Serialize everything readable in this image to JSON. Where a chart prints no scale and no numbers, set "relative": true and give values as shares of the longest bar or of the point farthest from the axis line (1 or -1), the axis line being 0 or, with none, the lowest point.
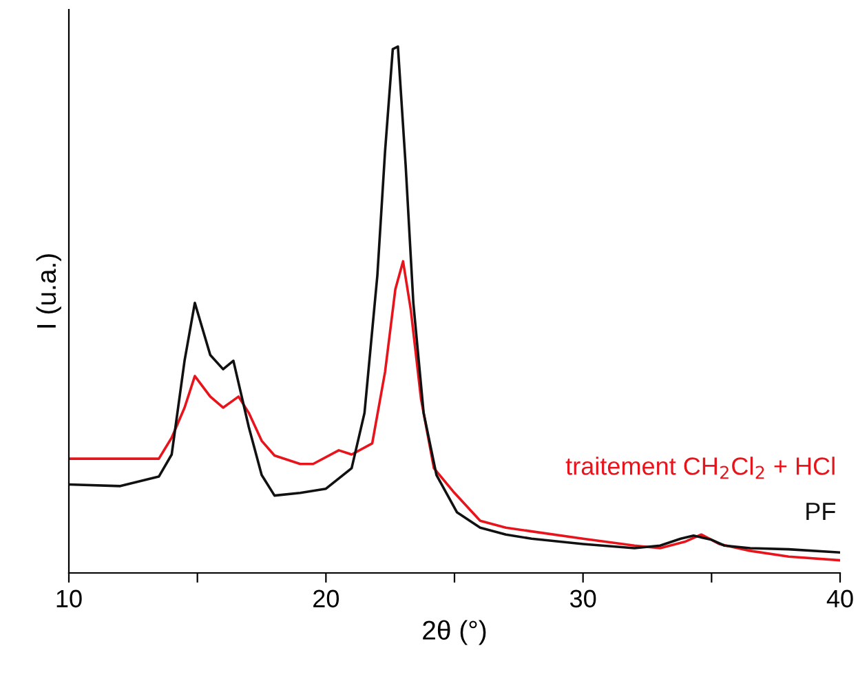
{
  "chart_data": {
    "type": "line",
    "relative": true,
    "xlabel": "2θ (°)",
    "ylabel": "I (u.a.)",
    "xlim": [
      10,
      40
    ],
    "xticks": [
      10,
      {
        "value": 15,
        "label": null
      },
      20,
      {
        "value": 25,
        "label": null
      },
      30,
      {
        "value": 35,
        "label": null
      },
      40
    ],
    "grid": false,
    "legend": false,
    "marker": "none",
    "line_style": "solid",
    "series": [
      {
        "name": "traitement CH$_{2}$Cl$_{2}$ + HCl",
        "color": "#e8141c",
        "x": [
          10,
          12,
          13.5,
          14.0,
          14.5,
          14.9,
          15.5,
          16.0,
          16.6,
          17.0,
          17.5,
          18.0,
          19.0,
          19.5,
          20.5,
          21.0,
          21.8,
          22.3,
          22.7,
          23.0,
          23.3,
          23.7,
          24.2,
          25,
          26,
          27,
          28,
          30,
          32,
          33,
          34,
          34.6,
          35.3,
          36.5,
          38,
          40
        ],
        "values": [
          0.217,
          0.217,
          0.217,
          0.257,
          0.314,
          0.374,
          0.335,
          0.314,
          0.335,
          0.304,
          0.251,
          0.223,
          0.207,
          0.207,
          0.233,
          0.225,
          0.246,
          0.382,
          0.539,
          0.592,
          0.5,
          0.33,
          0.199,
          0.152,
          0.099,
          0.086,
          0.079,
          0.065,
          0.052,
          0.047,
          0.06,
          0.073,
          0.055,
          0.042,
          0.031,
          0.024
        ]
      },
      {
        "name": "PF",
        "color": "#111111",
        "x": [
          10,
          12,
          13.5,
          14.0,
          14.5,
          14.9,
          15.5,
          16.0,
          16.4,
          17.0,
          17.5,
          18.0,
          19.0,
          20.0,
          21.0,
          21.5,
          22.0,
          22.3,
          22.6,
          22.8,
          23.1,
          23.4,
          23.8,
          24.3,
          25.1,
          26,
          27,
          28,
          30,
          32,
          33,
          33.8,
          34.3,
          35,
          35.5,
          36.5,
          38,
          40
        ],
        "values": [
          0.168,
          0.165,
          0.183,
          0.225,
          0.403,
          0.513,
          0.414,
          0.387,
          0.403,
          0.277,
          0.186,
          0.147,
          0.152,
          0.16,
          0.199,
          0.304,
          0.565,
          0.801,
          0.995,
          1,
          0.775,
          0.513,
          0.304,
          0.186,
          0.115,
          0.086,
          0.073,
          0.065,
          0.055,
          0.047,
          0.052,
          0.065,
          0.071,
          0.063,
          0.052,
          0.047,
          0.045,
          0.039
        ]
      }
    ]
  }
}
